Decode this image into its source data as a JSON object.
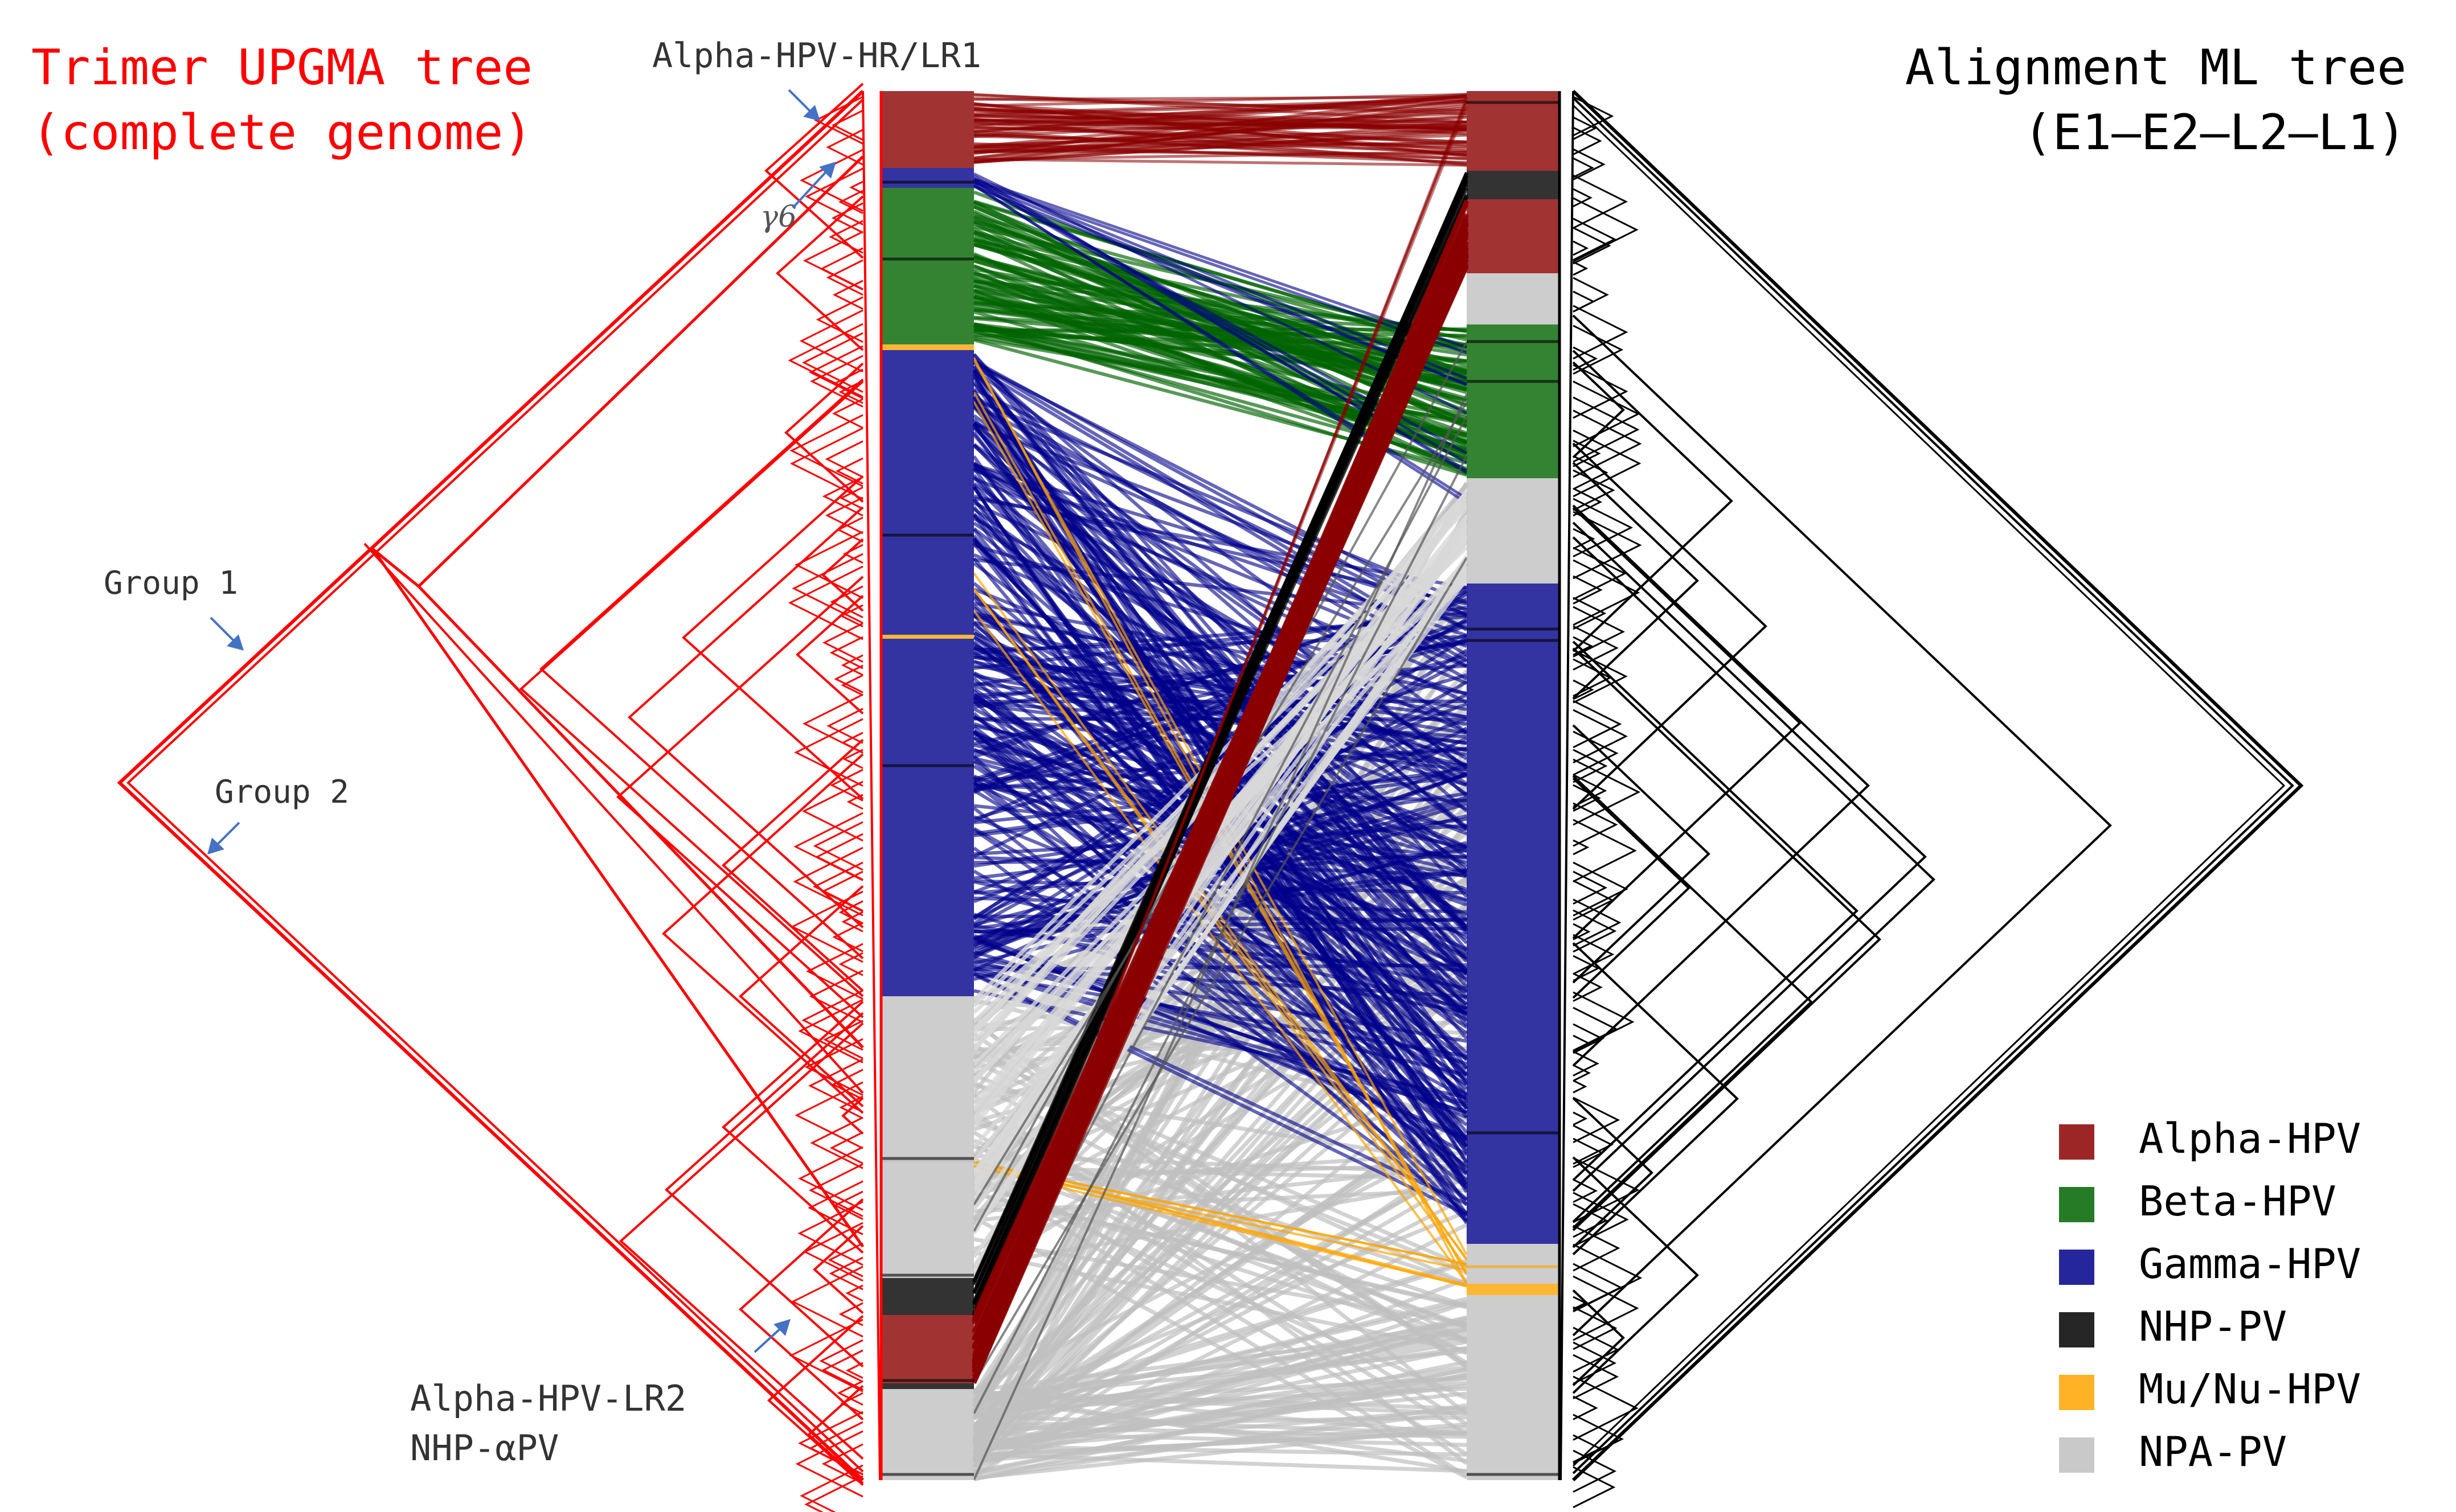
{
  "titles": {
    "left_line1": "Trimer UPGMA tree",
    "left_line2": "(complete genome)",
    "right_line1": "Alignment ML tree",
    "right_line2": "(E1–E2–L2–L1)"
  },
  "annotations": {
    "alpha_hr_lr1": "Alpha-HPV-HR/LR1",
    "gamma6": "γ6",
    "group1": "Group 1",
    "group2": "Group 2",
    "alpha_lr2": "Alpha-HPV-LR2",
    "nhp_apv": "NHP-αPV"
  },
  "legend": [
    {
      "label": "Alpha-HPV",
      "color": "#8b0000"
    },
    {
      "label": "Beta-HPV",
      "color": "#006400"
    },
    {
      "label": "Gamma-HPV",
      "color": "#00008b"
    },
    {
      "label": "NHP-PV",
      "color": "#000000"
    },
    {
      "label": "Mu/Nu-HPV",
      "color": "#ffa500"
    },
    {
      "label": "NPA-PV",
      "color": "#c0c0c0"
    }
  ],
  "colors": {
    "left_tree": "#ff0000",
    "right_tree": "#000000",
    "arrow": "#4472c4"
  }
}
